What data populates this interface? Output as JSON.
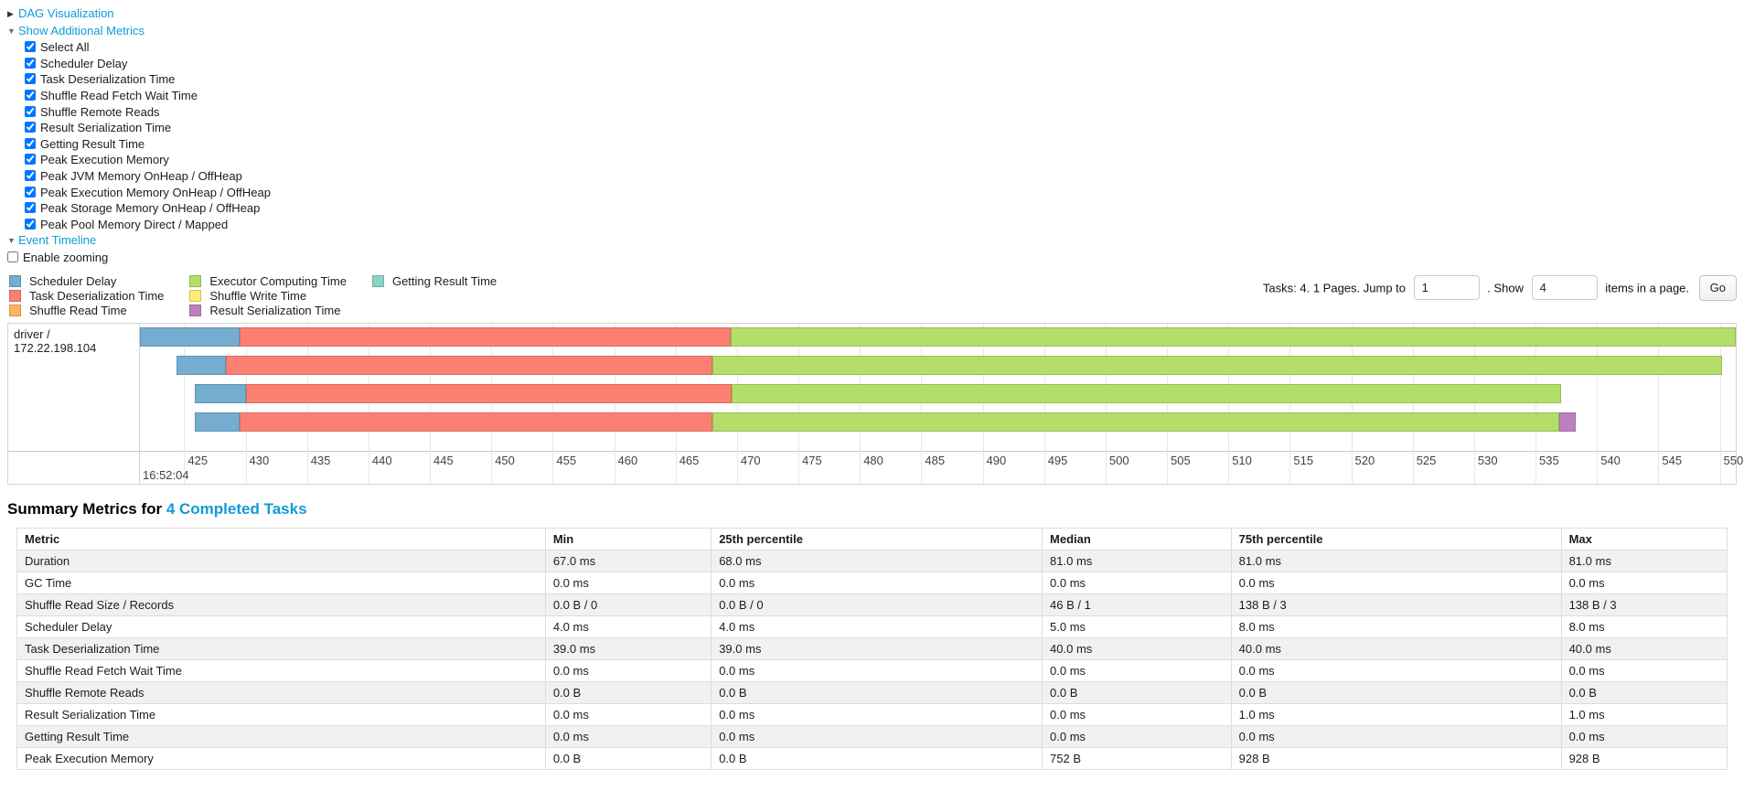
{
  "colors": {
    "link": "#0f9bd7",
    "scheduler_delay": "#74add0",
    "task_deserialization": "#fb8072",
    "shuffle_read": "#fdb462",
    "executor_computing": "#b3de69",
    "shuffle_write": "#ffed6f",
    "result_serialization": "#bc80bd",
    "getting_result": "#8dd3c7",
    "table_alt_row": "#f1f1f1"
  },
  "toggles": {
    "dag_label": "DAG Visualization",
    "metrics_label": "Show Additional Metrics",
    "timeline_label": "Event Timeline",
    "enable_zooming_label": "Enable zooming",
    "enable_zooming_checked": false
  },
  "metrics": {
    "items": [
      {
        "label": "Select All",
        "checked": true
      },
      {
        "label": "Scheduler Delay",
        "checked": true
      },
      {
        "label": "Task Deserialization Time",
        "checked": true
      },
      {
        "label": "Shuffle Read Fetch Wait Time",
        "checked": true
      },
      {
        "label": "Shuffle Remote Reads",
        "checked": true
      },
      {
        "label": "Result Serialization Time",
        "checked": true
      },
      {
        "label": "Getting Result Time",
        "checked": true
      },
      {
        "label": "Peak Execution Memory",
        "checked": true
      },
      {
        "label": "Peak JVM Memory OnHeap / OffHeap",
        "checked": true
      },
      {
        "label": "Peak Execution Memory OnHeap / OffHeap",
        "checked": true
      },
      {
        "label": "Peak Storage Memory OnHeap / OffHeap",
        "checked": true
      },
      {
        "label": "Peak Pool Memory Direct / Mapped",
        "checked": true
      }
    ]
  },
  "legend": {
    "columns": [
      [
        {
          "key": "scheduler_delay",
          "label": "Scheduler Delay"
        },
        {
          "key": "task_deserialization",
          "label": "Task Deserialization Time"
        },
        {
          "key": "shuffle_read",
          "label": "Shuffle Read Time"
        }
      ],
      [
        {
          "key": "executor_computing",
          "label": "Executor Computing Time"
        },
        {
          "key": "shuffle_write",
          "label": "Shuffle Write Time"
        },
        {
          "key": "result_serialization",
          "label": "Result Serialization Time"
        }
      ],
      [
        {
          "key": "getting_result",
          "label": "Getting Result Time"
        }
      ]
    ]
  },
  "pagination": {
    "prefix": "Tasks: 4. 1 Pages. Jump to",
    "jump_value": "1",
    "show_label": ". Show",
    "show_value": "4",
    "suffix": "items in a page.",
    "go_label": "Go"
  },
  "chart_data": {
    "type": "gantt-timeline",
    "title": "Event Timeline",
    "group_label": "driver / 172.22.198.104",
    "major_label": "16:52:04",
    "time_unit": "milliseconds within second 16:52:04",
    "xlim": [
      421.4,
      551.3
    ],
    "axis_ticks": [
      425,
      430,
      435,
      440,
      445,
      450,
      455,
      460,
      465,
      470,
      475,
      480,
      485,
      490,
      495,
      500,
      505,
      510,
      515,
      520,
      525,
      530,
      535,
      540,
      545,
      550
    ],
    "tasks": [
      {
        "segments": [
          {
            "name": "scheduler_delay",
            "start": 421.4,
            "end": 429.5
          },
          {
            "name": "task_deserialization",
            "start": 429.5,
            "end": 469.5
          },
          {
            "name": "executor_computing",
            "start": 469.5,
            "end": 551.3
          }
        ]
      },
      {
        "segments": [
          {
            "name": "scheduler_delay",
            "start": 424.4,
            "end": 428.4
          },
          {
            "name": "task_deserialization",
            "start": 428.4,
            "end": 468.0
          },
          {
            "name": "executor_computing",
            "start": 468.0,
            "end": 550.2
          }
        ]
      },
      {
        "segments": [
          {
            "name": "scheduler_delay",
            "start": 425.9,
            "end": 430.0
          },
          {
            "name": "task_deserialization",
            "start": 430.0,
            "end": 469.6
          },
          {
            "name": "executor_computing",
            "start": 469.6,
            "end": 537.1
          }
        ]
      },
      {
        "segments": [
          {
            "name": "scheduler_delay",
            "start": 425.9,
            "end": 429.5
          },
          {
            "name": "task_deserialization",
            "start": 429.5,
            "end": 468.0
          },
          {
            "name": "executor_computing",
            "start": 468.0,
            "end": 536.9
          },
          {
            "name": "result_serialization",
            "start": 536.9,
            "end": 538.3
          }
        ]
      }
    ]
  },
  "summary": {
    "title_prefix": "Summary Metrics for ",
    "title_link": "4 Completed Tasks",
    "table": {
      "headers": [
        "Metric",
        "Min",
        "25th percentile",
        "Median",
        "75th percentile",
        "Max"
      ],
      "rows": [
        [
          "Duration",
          "67.0 ms",
          "68.0 ms",
          "81.0 ms",
          "81.0 ms",
          "81.0 ms"
        ],
        [
          "GC Time",
          "0.0 ms",
          "0.0 ms",
          "0.0 ms",
          "0.0 ms",
          "0.0 ms"
        ],
        [
          "Shuffle Read Size / Records",
          "0.0 B / 0",
          "0.0 B / 0",
          "46 B / 1",
          "138 B / 3",
          "138 B / 3"
        ],
        [
          "Scheduler Delay",
          "4.0 ms",
          "4.0 ms",
          "5.0 ms",
          "8.0 ms",
          "8.0 ms"
        ],
        [
          "Task Deserialization Time",
          "39.0 ms",
          "39.0 ms",
          "40.0 ms",
          "40.0 ms",
          "40.0 ms"
        ],
        [
          "Shuffle Read Fetch Wait Time",
          "0.0 ms",
          "0.0 ms",
          "0.0 ms",
          "0.0 ms",
          "0.0 ms"
        ],
        [
          "Shuffle Remote Reads",
          "0.0 B",
          "0.0 B",
          "0.0 B",
          "0.0 B",
          "0.0 B"
        ],
        [
          "Result Serialization Time",
          "0.0 ms",
          "0.0 ms",
          "0.0 ms",
          "1.0 ms",
          "1.0 ms"
        ],
        [
          "Getting Result Time",
          "0.0 ms",
          "0.0 ms",
          "0.0 ms",
          "0.0 ms",
          "0.0 ms"
        ],
        [
          "Peak Execution Memory",
          "0.0 B",
          "0.0 B",
          "752 B",
          "928 B",
          "928 B"
        ]
      ]
    }
  }
}
